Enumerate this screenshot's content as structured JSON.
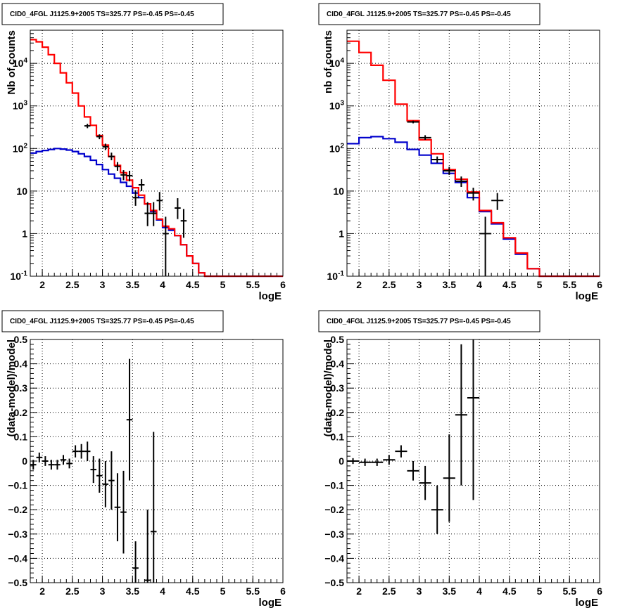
{
  "colors": {
    "model_total": "#ff0000",
    "model_background": "#0000cc",
    "data": "#000000",
    "grid": "#000000"
  },
  "chart_data": [
    {
      "type": "line",
      "title": "CID0_4FGL J1125.9+2005 TS=325.77 PS=-0.45 PS=-0.45",
      "xlabel": "logE",
      "ylabel": "Nb of counts",
      "log_y": true,
      "xlim": [
        1.8,
        6.0
      ],
      "ylim": [
        0.1,
        60000
      ],
      "x_ticks": [
        "2",
        "2.5",
        "3",
        "3.5",
        "4",
        "4.5",
        "5",
        "5.5",
        "6"
      ],
      "y_ticks": [
        "10^{-1}",
        "1",
        "10",
        "10^{2}",
        "10^{3}",
        "10^{4}"
      ],
      "grid": true,
      "bin_edges": [
        1.8,
        1.9,
        2.0,
        2.1,
        2.2,
        2.3,
        2.4,
        2.5,
        2.6,
        2.7,
        2.8,
        2.9,
        3.0,
        3.1,
        3.2,
        3.3,
        3.4,
        3.5,
        3.6,
        3.7,
        3.8,
        3.9,
        4.0,
        4.1,
        4.2,
        4.3,
        4.4,
        4.5,
        4.6,
        4.7,
        4.8,
        4.9,
        5.0,
        5.1,
        5.2,
        5.3,
        5.4,
        5.5,
        5.6,
        5.7,
        5.8,
        5.9,
        6.0
      ],
      "series": [
        {
          "values": [
            36000,
            32000,
            24000,
            16000,
            10000,
            6000,
            3500,
            2000,
            1000,
            550,
            350,
            200,
            120,
            65,
            40,
            27,
            18,
            12,
            8,
            5,
            3.5,
            2.2,
            1.5,
            1.3,
            0.9,
            0.55,
            0.3,
            0.2,
            0.12,
            0.1,
            0.1,
            0.1,
            0.1,
            0.1,
            0.1,
            0.1,
            0.1,
            0.1,
            0.1,
            0.1,
            0.1,
            0.1
          ]
        },
        {
          "values": [
            78,
            85,
            90,
            95,
            100,
            97,
            92,
            85,
            75,
            65,
            53,
            42,
            32,
            25,
            20,
            16,
            13,
            9,
            7,
            5,
            3.3,
            2.1,
            1.4,
            1.2,
            0.9,
            0.55,
            0.3,
            0.2,
            0.12,
            0.1,
            0.1,
            0.1,
            0.1,
            0.1,
            0.1,
            0.1,
            0.1,
            0.1,
            0.1,
            0.1,
            0.1,
            0.1
          ]
        }
      ],
      "data_points": [
        {
          "x": 2.75,
          "y": 340,
          "xerr": 0.05,
          "ylo": 300,
          "yhi": 380
        },
        {
          "x": 2.95,
          "y": 190,
          "xerr": 0.05,
          "ylo": 165,
          "yhi": 215
        },
        {
          "x": 3.05,
          "y": 110,
          "xerr": 0.05,
          "ylo": 92,
          "yhi": 130
        },
        {
          "x": 3.15,
          "y": 65,
          "xerr": 0.05,
          "ylo": 53,
          "yhi": 80
        },
        {
          "x": 3.25,
          "y": 38,
          "xerr": 0.05,
          "ylo": 30,
          "yhi": 48
        },
        {
          "x": 3.35,
          "y": 24,
          "xerr": 0.05,
          "ylo": 18,
          "yhi": 31
        },
        {
          "x": 3.45,
          "y": 23,
          "xerr": 0.05,
          "ylo": 17,
          "yhi": 30
        },
        {
          "x": 3.55,
          "y": 7,
          "xerr": 0.05,
          "ylo": 4.5,
          "yhi": 10.5
        },
        {
          "x": 3.65,
          "y": 14,
          "xerr": 0.05,
          "ylo": 10,
          "yhi": 19
        },
        {
          "x": 3.75,
          "y": 3,
          "xerr": 0.05,
          "ylo": 1.5,
          "yhi": 5.5
        },
        {
          "x": 3.85,
          "y": 3,
          "xerr": 0.05,
          "ylo": 1.5,
          "yhi": 5.5
        },
        {
          "x": 3.95,
          "y": 6,
          "xerr": 0.05,
          "ylo": 3.5,
          "yhi": 9.5
        },
        {
          "x": 4.05,
          "y": 1,
          "xerr": 0.05,
          "ylo": 0.1,
          "yhi": 2.5
        },
        {
          "x": 4.25,
          "y": 4,
          "xerr": 0.05,
          "ylo": 2.2,
          "yhi": 6.8
        },
        {
          "x": 4.35,
          "y": 2,
          "xerr": 0.05,
          "ylo": 0.8,
          "yhi": 3.8
        }
      ]
    },
    {
      "type": "line",
      "title": "CID0_4FGL J1125.9+2005 TS=325.77 PS=-0.45 PS=-0.45",
      "xlabel": "logE",
      "ylabel": "nb of counts",
      "log_y": true,
      "xlim": [
        1.8,
        6.0
      ],
      "ylim": [
        0.1,
        60000
      ],
      "x_ticks": [
        "2",
        "2.5",
        "3",
        "3.5",
        "4",
        "4.5",
        "5",
        "5.5",
        "6"
      ],
      "y_ticks": [
        "10^{-1}",
        "1",
        "10",
        "10^{2}",
        "10^{3}",
        "10^{4}"
      ],
      "grid": true,
      "bin_edges": [
        1.8,
        2.0,
        2.2,
        2.4,
        2.6,
        2.8,
        3.0,
        3.2,
        3.4,
        3.6,
        3.8,
        4.0,
        4.2,
        4.4,
        4.6,
        4.8,
        5.0,
        5.2,
        5.4,
        5.6,
        5.8,
        6.0
      ],
      "series": [
        {
          "values": [
            33000,
            18000,
            9000,
            4000,
            1100,
            450,
            160,
            75,
            32,
            19,
            9.5,
            3.5,
            1.8,
            0.8,
            0.35,
            0.15,
            0.1,
            0.1,
            0.1,
            0.1,
            0.1
          ]
        },
        {
          "values": [
            130,
            180,
            190,
            170,
            140,
            95,
            70,
            45,
            26,
            16,
            7,
            3.3,
            1.7,
            0.75,
            0.33,
            0.15,
            0.1,
            0.1,
            0.1,
            0.1,
            0.1
          ]
        }
      ],
      "data_points": [
        {
          "x": 2.9,
          "y": 420,
          "xerr": 0.1,
          "ylo": 390,
          "yhi": 450
        },
        {
          "x": 3.1,
          "y": 180,
          "xerr": 0.1,
          "ylo": 160,
          "yhi": 205
        },
        {
          "x": 3.3,
          "y": 55,
          "xerr": 0.1,
          "ylo": 46,
          "yhi": 65
        },
        {
          "x": 3.5,
          "y": 30,
          "xerr": 0.1,
          "ylo": 24,
          "yhi": 37
        },
        {
          "x": 3.7,
          "y": 17,
          "xerr": 0.1,
          "ylo": 12.5,
          "yhi": 22
        },
        {
          "x": 3.9,
          "y": 9,
          "xerr": 0.1,
          "ylo": 6,
          "yhi": 12
        },
        {
          "x": 4.1,
          "y": 1,
          "xerr": 0.1,
          "ylo": 0.1,
          "yhi": 2.5
        },
        {
          "x": 4.3,
          "y": 6,
          "xerr": 0.1,
          "ylo": 3.6,
          "yhi": 9
        }
      ]
    },
    {
      "type": "scatter",
      "title": "CID0_4FGL J1125.9+2005 TS=325.77 PS=-0.45 PS=-0.45",
      "xlabel": "logE",
      "ylabel": "(data-model)/model",
      "log_y": false,
      "xlim": [
        1.8,
        6.0
      ],
      "ylim": [
        -0.5,
        0.5
      ],
      "x_ticks": [
        "2",
        "2.5",
        "3",
        "3.5",
        "4",
        "4.5",
        "5",
        "5.5",
        "6"
      ],
      "y_ticks": [
        "−0.5",
        "−0.4",
        "−0.3",
        "−0.2",
        "−0.1",
        "0",
        "0.1",
        "0.2",
        "0.3",
        "0.4",
        "0.5"
      ],
      "grid": true,
      "data_points": [
        {
          "x": 1.85,
          "y": -0.015,
          "xerr": 0.05,
          "ylo": -0.035,
          "yhi": 0.005
        },
        {
          "x": 1.95,
          "y": 0.015,
          "xerr": 0.05,
          "ylo": -0.005,
          "yhi": 0.035
        },
        {
          "x": 2.05,
          "y": 0.0,
          "xerr": 0.05,
          "ylo": -0.02,
          "yhi": 0.02
        },
        {
          "x": 2.15,
          "y": -0.015,
          "xerr": 0.05,
          "ylo": -0.035,
          "yhi": 0.005
        },
        {
          "x": 2.25,
          "y": -0.015,
          "xerr": 0.05,
          "ylo": -0.035,
          "yhi": 0.005
        },
        {
          "x": 2.35,
          "y": 0.005,
          "xerr": 0.05,
          "ylo": -0.015,
          "yhi": 0.025
        },
        {
          "x": 2.45,
          "y": -0.01,
          "xerr": 0.05,
          "ylo": -0.03,
          "yhi": 0.01
        },
        {
          "x": 2.55,
          "y": 0.04,
          "xerr": 0.05,
          "ylo": 0.015,
          "yhi": 0.065
        },
        {
          "x": 2.65,
          "y": 0.04,
          "xerr": 0.05,
          "ylo": 0.01,
          "yhi": 0.07
        },
        {
          "x": 2.75,
          "y": 0.04,
          "xerr": 0.05,
          "ylo": 0.0,
          "yhi": 0.08
        },
        {
          "x": 2.85,
          "y": -0.035,
          "xerr": 0.05,
          "ylo": -0.09,
          "yhi": 0.02
        },
        {
          "x": 2.95,
          "y": -0.06,
          "xerr": 0.05,
          "ylo": -0.13,
          "yhi": 0.01
        },
        {
          "x": 3.05,
          "y": -0.095,
          "xerr": 0.05,
          "ylo": -0.19,
          "yhi": 0.0
        },
        {
          "x": 3.15,
          "y": -0.08,
          "xerr": 0.05,
          "ylo": -0.2,
          "yhi": 0.04
        },
        {
          "x": 3.25,
          "y": -0.19,
          "xerr": 0.05,
          "ylo": -0.33,
          "yhi": -0.05
        },
        {
          "x": 3.35,
          "y": -0.21,
          "xerr": 0.05,
          "ylo": -0.38,
          "yhi": -0.04
        },
        {
          "x": 3.45,
          "y": 0.17,
          "xerr": 0.05,
          "ylo": -0.08,
          "yhi": 0.42
        },
        {
          "x": 3.55,
          "y": -0.44,
          "xerr": 0.05,
          "ylo": -0.5,
          "yhi": -0.33
        },
        {
          "x": 3.75,
          "y": -0.49,
          "xerr": 0.05,
          "ylo": -0.5,
          "yhi": -0.2
        },
        {
          "x": 3.85,
          "y": -0.29,
          "xerr": 0.05,
          "ylo": -0.5,
          "yhi": 0.12
        }
      ]
    },
    {
      "type": "scatter",
      "title": "CID0_4FGL J1125.9+2005 TS=325.77 PS=-0.45 PS=-0.45",
      "xlabel": "logE",
      "ylabel": "(data-model)/model",
      "log_y": false,
      "xlim": [
        1.8,
        6.0
      ],
      "ylim": [
        -0.5,
        0.5
      ],
      "x_ticks": [
        "2",
        "2.5",
        "3",
        "3.5",
        "4",
        "4.5",
        "5",
        "5.5",
        "6"
      ],
      "y_ticks": [
        "−0.5",
        "−0.4",
        "−0.3",
        "−0.2",
        "−0.1",
        "0",
        "0.1",
        "0.2",
        "0.3",
        "0.4",
        "0.5"
      ],
      "grid": true,
      "data_points": [
        {
          "x": 1.9,
          "y": 0.0,
          "xerr": 0.1,
          "ylo": -0.012,
          "yhi": 0.012
        },
        {
          "x": 2.1,
          "y": -0.005,
          "xerr": 0.1,
          "ylo": -0.02,
          "yhi": 0.01
        },
        {
          "x": 2.3,
          "y": -0.005,
          "xerr": 0.1,
          "ylo": -0.02,
          "yhi": 0.01
        },
        {
          "x": 2.5,
          "y": 0.005,
          "xerr": 0.1,
          "ylo": -0.015,
          "yhi": 0.025
        },
        {
          "x": 2.7,
          "y": 0.04,
          "xerr": 0.1,
          "ylo": 0.015,
          "yhi": 0.065
        },
        {
          "x": 2.9,
          "y": -0.04,
          "xerr": 0.1,
          "ylo": -0.08,
          "yhi": 0.0
        },
        {
          "x": 3.1,
          "y": -0.09,
          "xerr": 0.1,
          "ylo": -0.16,
          "yhi": -0.02
        },
        {
          "x": 3.3,
          "y": -0.2,
          "xerr": 0.1,
          "ylo": -0.3,
          "yhi": -0.1
        },
        {
          "x": 3.5,
          "y": -0.07,
          "xerr": 0.1,
          "ylo": -0.25,
          "yhi": 0.11
        },
        {
          "x": 3.7,
          "y": 0.19,
          "xerr": 0.1,
          "ylo": -0.1,
          "yhi": 0.48
        },
        {
          "x": 3.9,
          "y": 0.26,
          "xerr": 0.1,
          "ylo": -0.16,
          "yhi": 0.5
        }
      ]
    }
  ]
}
